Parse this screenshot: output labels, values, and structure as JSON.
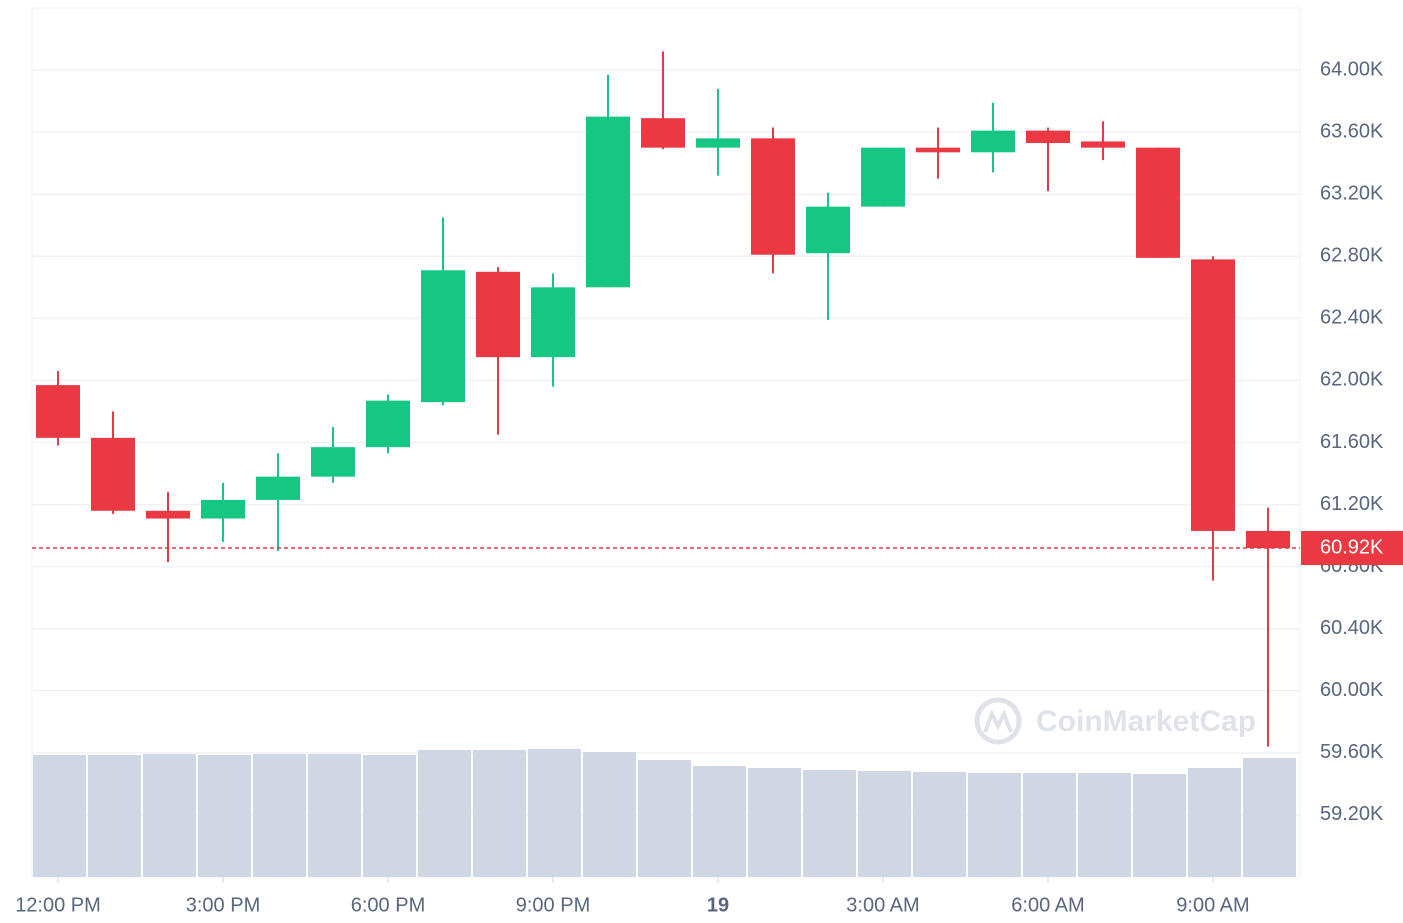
{
  "chart_data": {
    "type": "candlestick",
    "categories": [
      "12:00 PM",
      null,
      null,
      "3:00 PM",
      null,
      null,
      "6:00 PM",
      null,
      null,
      "9:00 PM",
      null,
      null,
      "19",
      null,
      null,
      "3:00 AM",
      null,
      null,
      "6:00 AM",
      null,
      null,
      "9:00 AM",
      null
    ],
    "open": [
      61970,
      61630,
      61160,
      61110,
      61230,
      61380,
      61570,
      61860,
      62700,
      62150,
      62600,
      63690,
      63500,
      63560,
      62820,
      63120,
      63500,
      63470,
      63610,
      63540,
      63500,
      62780,
      61030
    ],
    "high": [
      62060,
      61800,
      61280,
      61340,
      61530,
      61700,
      61910,
      63050,
      62730,
      62690,
      63970,
      64120,
      63880,
      63630,
      63210,
      63500,
      63630,
      63790,
      63630,
      63670,
      63500,
      62800,
      61180
    ],
    "low": [
      61580,
      61140,
      60830,
      60960,
      60900,
      61340,
      61530,
      61840,
      61650,
      61960,
      62600,
      63490,
      63320,
      62690,
      62390,
      63120,
      63300,
      63340,
      63220,
      63420,
      62790,
      60710,
      59640
    ],
    "close": [
      61630,
      61160,
      61110,
      61230,
      61380,
      61570,
      61870,
      62710,
      62150,
      62600,
      63700,
      63500,
      63560,
      62810,
      63120,
      63500,
      63470,
      63610,
      63530,
      63500,
      62790,
      61030,
      60920
    ],
    "volume": [
      122,
      122,
      123,
      122,
      123,
      123,
      122,
      127,
      127,
      128,
      125,
      117,
      111,
      109,
      107,
      106,
      105,
      104,
      104,
      104,
      103,
      109,
      119
    ],
    "up_color": "#16c784",
    "down_color": "#ea3943",
    "volume_color": "#cfd6e4",
    "ylim": [
      58800,
      64400
    ],
    "yticks": [
      {
        "value": 64000,
        "label": "64.00K"
      },
      {
        "value": 63600,
        "label": "63.60K"
      },
      {
        "value": 63200,
        "label": "63.20K"
      },
      {
        "value": 62800,
        "label": "62.80K"
      },
      {
        "value": 62400,
        "label": "62.40K"
      },
      {
        "value": 62000,
        "label": "62.00K"
      },
      {
        "value": 61600,
        "label": "61.60K"
      },
      {
        "value": 61200,
        "label": "61.20K"
      },
      {
        "value": 60800,
        "label": "60.80K"
      },
      {
        "value": 60400,
        "label": "60.40K"
      },
      {
        "value": 60000,
        "label": "60.00K"
      },
      {
        "value": 59600,
        "label": "59.60K"
      },
      {
        "value": 59200,
        "label": "59.20K"
      }
    ],
    "grid": true,
    "last_price": {
      "value": 60920,
      "label": "60.92K"
    },
    "watermark": "CoinMarketCap"
  }
}
